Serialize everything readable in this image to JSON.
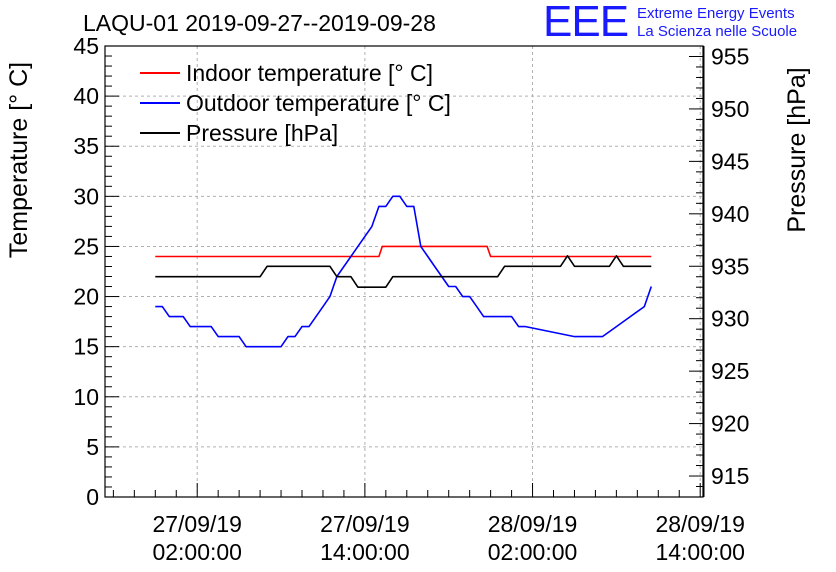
{
  "chart_data": {
    "type": "line",
    "title": "LAQU-01 2019-09-27--2019-09-28",
    "ylabel": "Temperature [° C]",
    "y2label": "Pressure [hPa]",
    "xlabel": "",
    "ylim": [
      0,
      45
    ],
    "y2lim": [
      913,
      956
    ],
    "grid": true,
    "legend_position": "top-left",
    "x_unit": "hours since 2019-09-26 20:00",
    "xlim": [
      -0.6,
      42.2
    ],
    "x_ticks": [
      {
        "x": 6,
        "date": "27/09/19",
        "time": "02:00:00"
      },
      {
        "x": 18,
        "date": "27/09/19",
        "time": "14:00:00"
      },
      {
        "x": 30,
        "date": "28/09/19",
        "time": "02:00:00"
      },
      {
        "x": 42,
        "date": "28/09/19",
        "time": "14:00:00"
      }
    ],
    "y_ticks": [
      0,
      5,
      10,
      15,
      20,
      25,
      30,
      35,
      40,
      45
    ],
    "y2_ticks": [
      915,
      920,
      925,
      930,
      935,
      940,
      945,
      950,
      955
    ],
    "series": [
      {
        "name": "Indoor temperature [° C]",
        "color": "#ff0000",
        "axis": "left",
        "x": [
          3,
          19,
          19.25,
          26.75,
          27,
          38.5
        ],
        "values": [
          24,
          24,
          25,
          25,
          24,
          24
        ]
      },
      {
        "name": "Outdoor temperature [° C]",
        "color": "#0000ff",
        "axis": "left",
        "x": [
          3,
          3.5,
          4,
          5,
          5.5,
          6,
          7,
          7.5,
          9,
          9.5,
          12,
          12.5,
          13,
          13.5,
          14,
          14.5,
          15,
          15.5,
          16,
          16.5,
          17,
          17.5,
          18,
          18.5,
          19,
          19.5,
          20,
          20.5,
          21,
          21.5,
          22,
          22.5,
          23,
          23.5,
          24,
          24.5,
          25,
          25.5,
          26,
          26.5,
          27,
          27.5,
          28,
          28.5,
          29,
          29.5,
          33,
          34,
          35,
          36,
          37,
          38,
          38.5
        ],
        "values": [
          19,
          19,
          18,
          18,
          17,
          17,
          17,
          16,
          16,
          15,
          15,
          16,
          16,
          17,
          17,
          18,
          19,
          20,
          22,
          23,
          24,
          25,
          26,
          27,
          29,
          29,
          30,
          30,
          29,
          29,
          25,
          24,
          23,
          22,
          21,
          21,
          20,
          20,
          19,
          18,
          18,
          18,
          18,
          18,
          17,
          17,
          16,
          16,
          16,
          17,
          18,
          19,
          21
        ]
      },
      {
        "name": "Pressure [hPa]",
        "color": "#000000",
        "axis": "right",
        "x": [
          3,
          10.5,
          11,
          15.5,
          16,
          17,
          17.5,
          19.5,
          20,
          27.5,
          28,
          28.5,
          29.5,
          32,
          32.5,
          33,
          33.5,
          34,
          34.5,
          35.5,
          36,
          36.5,
          37,
          38.5
        ],
        "values": [
          934,
          934,
          935,
          935,
          934,
          934,
          933,
          933,
          934,
          934,
          935,
          935,
          935,
          935,
          936,
          935,
          935,
          935,
          935,
          935,
          936,
          935,
          935,
          935
        ]
      }
    ]
  },
  "logo": {
    "mark": "EEE",
    "line1": "Extreme Energy Events",
    "line2": "La Scienza nelle Scuole"
  }
}
